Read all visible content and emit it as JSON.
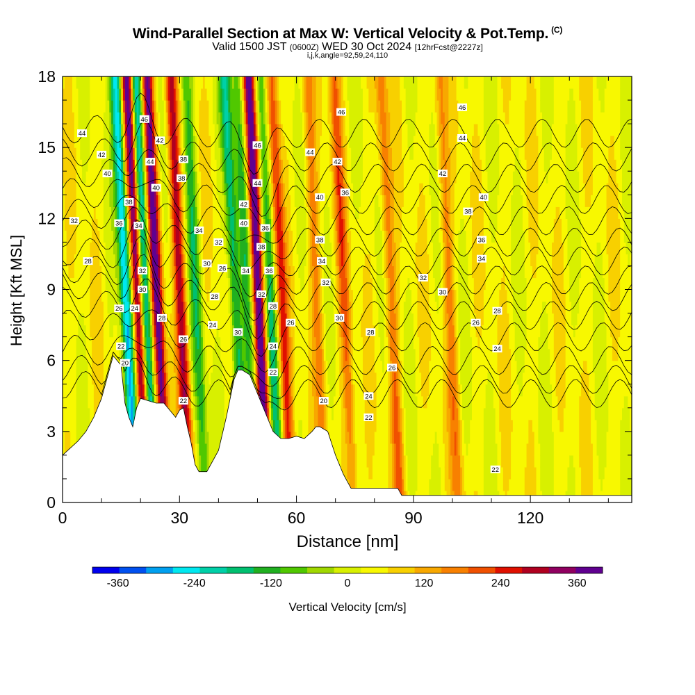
{
  "header": {
    "title": "Wind-Parallel Section at Max W: Vertical Velocity & Pot.Temp.",
    "title_mark": "(C)",
    "subtitle_a": "Valid 1500 JST",
    "subtitle_b": "(0600Z)",
    "subtitle_c": "WED 30 Oct 2024",
    "subtitle_d": "[12hrFcst@2227z]",
    "params": "i,j,k,angle=92,59,24,110"
  },
  "chart_data": {
    "type": "heatmap",
    "xlabel": "Distance [nm]",
    "ylabel": "Height [Kft MSL]",
    "xlim": [
      0,
      146
    ],
    "ylim": [
      0,
      18
    ],
    "x_ticks": [
      0,
      30,
      60,
      90,
      120
    ],
    "y_ticks": [
      0,
      3,
      6,
      9,
      12,
      15,
      18
    ],
    "colorbar": {
      "title": "Vertical Velocity [cm/s]",
      "range": [
        -400,
        400
      ],
      "step": 40,
      "tick_labels": [
        -360,
        -240,
        -120,
        0,
        120,
        240,
        360
      ],
      "colors": [
        "#0000ee",
        "#0050f0",
        "#00a0f0",
        "#00e8f0",
        "#00d0a8",
        "#00c070",
        "#20b020",
        "#50c800",
        "#a0d800",
        "#d8f000",
        "#f8f800",
        "#f8d000",
        "#f8a800",
        "#f88000",
        "#f05000",
        "#e01000",
        "#b00020",
        "#900060",
        "#600090"
      ]
    },
    "w_features": [
      {
        "x": 17,
        "w": -320
      },
      {
        "x": 20,
        "w": 360
      },
      {
        "x": 22,
        "w": -300
      },
      {
        "x": 25,
        "w": 340
      },
      {
        "x": 31,
        "w": 260
      },
      {
        "x": 35,
        "w": -160
      },
      {
        "x": 45,
        "w": -220
      },
      {
        "x": 48,
        "w": -140
      },
      {
        "x": 51,
        "w": 380
      },
      {
        "x": 54,
        "w": -180
      },
      {
        "x": 57,
        "w": 200
      },
      {
        "x": 66,
        "w": 120
      },
      {
        "x": 73,
        "w": 150
      },
      {
        "x": 85,
        "w": 140
      },
      {
        "x": 100,
        "w": 120
      }
    ],
    "terrain": [
      [
        0,
        2
      ],
      [
        2,
        2.3
      ],
      [
        4,
        2.6
      ],
      [
        6,
        3
      ],
      [
        8,
        3.6
      ],
      [
        10,
        4.4
      ],
      [
        12,
        5.6
      ],
      [
        13,
        6.2
      ],
      [
        14,
        6
      ],
      [
        15,
        5.8
      ],
      [
        16,
        4.2
      ],
      [
        17,
        3.6
      ],
      [
        18,
        3.2
      ],
      [
        19,
        4
      ],
      [
        20,
        4.4
      ],
      [
        22,
        4.3
      ],
      [
        24,
        4.2
      ],
      [
        26,
        4.2
      ],
      [
        28,
        3.8
      ],
      [
        29,
        3.6
      ],
      [
        30,
        3.9
      ],
      [
        31,
        4
      ],
      [
        32,
        3.2
      ],
      [
        33,
        2.5
      ],
      [
        34,
        1.6
      ],
      [
        35,
        1.3
      ],
      [
        37,
        1.3
      ],
      [
        38,
        1.6
      ],
      [
        40,
        2.2
      ],
      [
        42,
        3.6
      ],
      [
        44,
        5.2
      ],
      [
        45,
        5.6
      ],
      [
        46,
        5.6
      ],
      [
        48,
        5.4
      ],
      [
        49,
        5
      ],
      [
        50,
        4.6
      ],
      [
        52,
        3.8
      ],
      [
        54,
        3
      ],
      [
        56,
        2.7
      ],
      [
        58,
        2.7
      ],
      [
        60,
        2.8
      ],
      [
        62,
        2.7
      ],
      [
        64,
        3
      ],
      [
        65,
        3.2
      ],
      [
        66,
        3.2
      ],
      [
        68,
        3
      ],
      [
        70,
        2
      ],
      [
        72,
        1.2
      ],
      [
        73,
        0.9
      ],
      [
        74,
        0.6
      ],
      [
        76,
        0.6
      ],
      [
        86,
        0.6
      ],
      [
        87,
        0.3
      ],
      [
        146,
        0.3
      ]
    ],
    "isentropes": [
      {
        "label": "20",
        "h0": 4.6,
        "s": 0.1
      },
      {
        "label": "22",
        "h0": 5.2,
        "s": 0.12
      },
      {
        "label": "24",
        "h0": 6.0,
        "s": 0.13
      },
      {
        "label": "26",
        "h0": 7.0,
        "s": 0.14
      },
      {
        "label": "28",
        "h0": 7.9,
        "s": 0.15
      },
      {
        "label": "30",
        "h0": 8.7,
        "s": 0.14
      },
      {
        "label": "32",
        "h0": 9.4,
        "s": 0.13
      },
      {
        "label": "34",
        "h0": 10.2,
        "s": 0.11
      },
      {
        "label": "36",
        "h0": 11.0,
        "s": 0.1
      },
      {
        "label": "38",
        "h0": 11.9,
        "s": 0.09
      },
      {
        "label": "40",
        "h0": 12.8,
        "s": 0.08
      },
      {
        "label": "42",
        "h0": 13.7,
        "s": 0.07
      },
      {
        "label": "44",
        "h0": 14.6,
        "s": 0.06
      },
      {
        "label": "46",
        "h0": 15.6,
        "s": 0.05
      }
    ],
    "contour_labels": [
      {
        "t": "44",
        "x": 5,
        "y": 15.6
      },
      {
        "t": "42",
        "x": 10,
        "y": 14.7
      },
      {
        "t": "40",
        "x": 11.5,
        "y": 13.9
      },
      {
        "t": "32",
        "x": 3,
        "y": 11.9
      },
      {
        "t": "28",
        "x": 6.5,
        "y": 10.2
      },
      {
        "t": "36",
        "x": 14.5,
        "y": 11.8
      },
      {
        "t": "38",
        "x": 17,
        "y": 12.7
      },
      {
        "t": "34",
        "x": 19.5,
        "y": 11.7
      },
      {
        "t": "32",
        "x": 20.5,
        "y": 9.8
      },
      {
        "t": "30",
        "x": 20.5,
        "y": 9
      },
      {
        "t": "26",
        "x": 14.5,
        "y": 8.2
      },
      {
        "t": "24",
        "x": 18.5,
        "y": 8.2
      },
      {
        "t": "22",
        "x": 15,
        "y": 6.6
      },
      {
        "t": "20",
        "x": 16,
        "y": 5.9
      },
      {
        "t": "46",
        "x": 21,
        "y": 16.2
      },
      {
        "t": "42",
        "x": 25,
        "y": 15.3
      },
      {
        "t": "44",
        "x": 22.5,
        "y": 14.4
      },
      {
        "t": "40",
        "x": 24,
        "y": 13.3
      },
      {
        "t": "38",
        "x": 31,
        "y": 14.5
      },
      {
        "t": "38",
        "x": 30.5,
        "y": 13.7
      },
      {
        "t": "34",
        "x": 35,
        "y": 11.5
      },
      {
        "t": "32",
        "x": 40,
        "y": 11
      },
      {
        "t": "30",
        "x": 37,
        "y": 10.1
      },
      {
        "t": "26",
        "x": 41,
        "y": 9.9
      },
      {
        "t": "28",
        "x": 39,
        "y": 8.7
      },
      {
        "t": "28",
        "x": 25.5,
        "y": 7.8
      },
      {
        "t": "24",
        "x": 38.5,
        "y": 7.5
      },
      {
        "t": "26",
        "x": 31,
        "y": 6.9
      },
      {
        "t": "22",
        "x": 31,
        "y": 4.3
      },
      {
        "t": "30",
        "x": 45,
        "y": 7.2
      },
      {
        "t": "46",
        "x": 50,
        "y": 15.1
      },
      {
        "t": "44",
        "x": 50,
        "y": 13.5
      },
      {
        "t": "42",
        "x": 46.5,
        "y": 12.6
      },
      {
        "t": "40",
        "x": 46.5,
        "y": 11.8
      },
      {
        "t": "36",
        "x": 52,
        "y": 11.6
      },
      {
        "t": "38",
        "x": 51,
        "y": 10.8
      },
      {
        "t": "34",
        "x": 47,
        "y": 9.8
      },
      {
        "t": "36",
        "x": 53,
        "y": 9.8
      },
      {
        "t": "32",
        "x": 51,
        "y": 8.8
      },
      {
        "t": "28",
        "x": 54,
        "y": 8.3
      },
      {
        "t": "26",
        "x": 58.5,
        "y": 7.6
      },
      {
        "t": "24",
        "x": 54,
        "y": 6.6
      },
      {
        "t": "22",
        "x": 54,
        "y": 5.5
      },
      {
        "t": "44",
        "x": 63.5,
        "y": 14.8
      },
      {
        "t": "46",
        "x": 71.5,
        "y": 16.5
      },
      {
        "t": "42",
        "x": 70.5,
        "y": 14.4
      },
      {
        "t": "40",
        "x": 66,
        "y": 12.9
      },
      {
        "t": "36",
        "x": 72.5,
        "y": 13.1
      },
      {
        "t": "38",
        "x": 66,
        "y": 11.1
      },
      {
        "t": "34",
        "x": 66.5,
        "y": 10.2
      },
      {
        "t": "32",
        "x": 67.5,
        "y": 9.3
      },
      {
        "t": "30",
        "x": 71,
        "y": 7.8
      },
      {
        "t": "28",
        "x": 79,
        "y": 7.2
      },
      {
        "t": "26",
        "x": 84.5,
        "y": 5.7
      },
      {
        "t": "20",
        "x": 67,
        "y": 4.3
      },
      {
        "t": "24",
        "x": 78.5,
        "y": 4.5
      },
      {
        "t": "22",
        "x": 78.5,
        "y": 3.6
      },
      {
        "t": "46",
        "x": 102.5,
        "y": 16.7
      },
      {
        "t": "44",
        "x": 102.5,
        "y": 15.4
      },
      {
        "t": "42",
        "x": 97.5,
        "y": 13.9
      },
      {
        "t": "40",
        "x": 108,
        "y": 12.9
      },
      {
        "t": "38",
        "x": 104,
        "y": 12.3
      },
      {
        "t": "36",
        "x": 107.5,
        "y": 11.1
      },
      {
        "t": "34",
        "x": 107.5,
        "y": 10.3
      },
      {
        "t": "32",
        "x": 92.5,
        "y": 9.5
      },
      {
        "t": "30",
        "x": 97.5,
        "y": 8.9
      },
      {
        "t": "28",
        "x": 111.5,
        "y": 8.1
      },
      {
        "t": "26",
        "x": 106,
        "y": 7.6
      },
      {
        "t": "24",
        "x": 111.5,
        "y": 6.5
      },
      {
        "t": "22",
        "x": 111,
        "y": 1.4
      }
    ]
  }
}
